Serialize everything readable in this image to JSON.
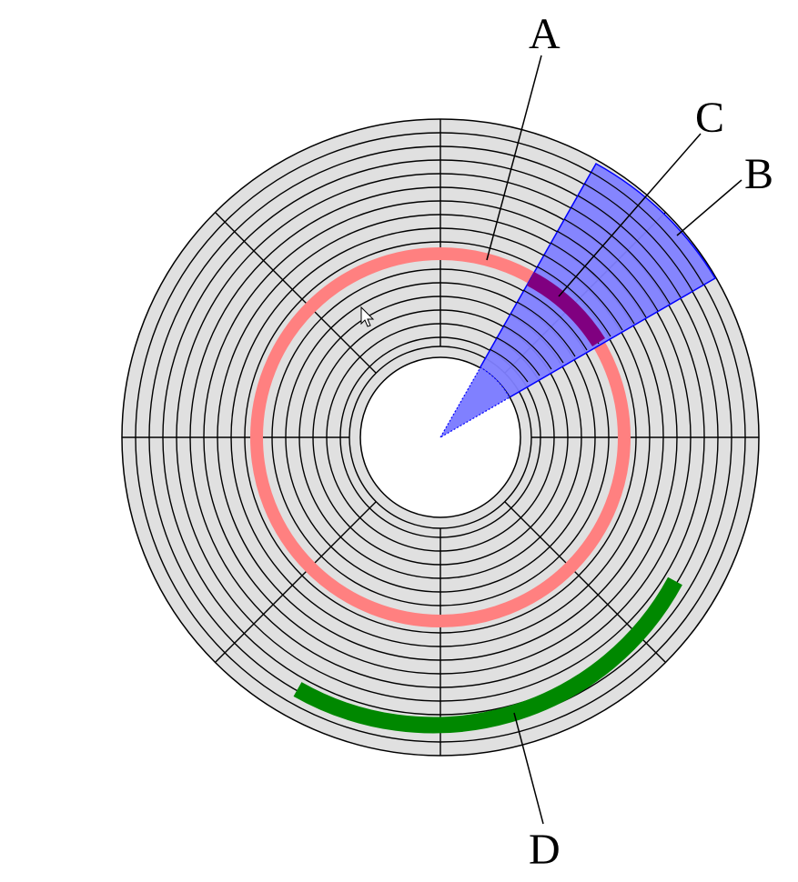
{
  "labels": {
    "a": "A",
    "b": "B",
    "c": "C",
    "d": "D"
  },
  "colors": {
    "platter": "#e0e0e0",
    "outline": "#000000",
    "track_highlight": "#ff8080",
    "sector_highlight": "#8080ff",
    "sector_border": "#0000ff",
    "track_sector_intersection": "#800080",
    "cluster_highlight": "#008800",
    "background": "#ffffff"
  },
  "disk": {
    "track_count": 12,
    "sector_count": 8,
    "highlighted_track_number": 7,
    "cluster_track_number": 3,
    "cluster_sectors_spanned": 3
  }
}
